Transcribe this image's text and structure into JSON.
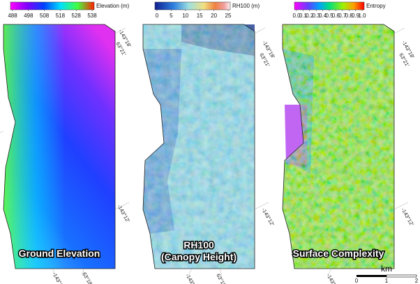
{
  "panels": [
    {
      "colorbar": {
        "label": "Elevation (m)",
        "ticks": [
          488,
          498,
          508,
          518,
          528,
          538
        ]
      },
      "title": [
        "Ground Elevation"
      ],
      "coords": [
        "-143°18'",
        "63°21'",
        "-143°12'",
        "-143°12'",
        "63°18'"
      ]
    },
    {
      "colorbar": {
        "label": "RH100 (m)",
        "ticks": [
          0,
          5,
          10,
          15,
          20,
          25
        ]
      },
      "title": [
        "RH100",
        "(Canopy Height)"
      ],
      "coords": [
        "-143°18'",
        "63°21'",
        "-143°12'",
        "-143°12'",
        "63°18'"
      ]
    },
    {
      "colorbar": {
        "label": "Entropy",
        "ticks": [
          {
            "value": 0,
            "label": "0.0"
          },
          0.1,
          0.2,
          0.3,
          0.4,
          0.5,
          0.6,
          0.7,
          0.8,
          0.9,
          {
            "value": 1,
            "label": "1.0"
          }
        ]
      },
      "title": [
        "Surface Complexity"
      ],
      "coords": [
        "-143°18'",
        "63°21'",
        "-143°12'",
        "-143°12'"
      ]
    }
  ],
  "scale_bar": {
    "unit": "km",
    "ticks": [
      "0",
      "1",
      "2"
    ]
  }
}
